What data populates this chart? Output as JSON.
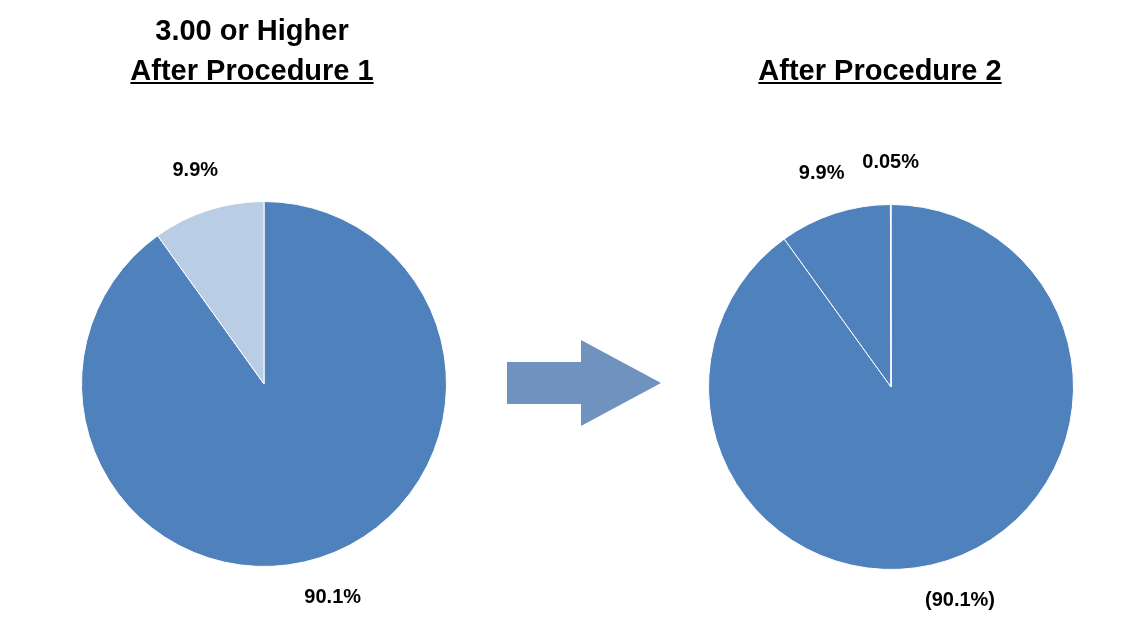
{
  "chart_data": [
    {
      "type": "pie",
      "title": "3.00 or Higher",
      "subtitle": "After Procedure 1",
      "categories": [
        null,
        null
      ],
      "values": [
        90.1,
        9.9
      ],
      "colors": [
        "#4f81bd",
        "#b9cde5"
      ],
      "value_labels": [
        "90.1%",
        "9.9%"
      ]
    },
    {
      "type": "pie",
      "title": "After Procedure 2",
      "categories": [
        null,
        null,
        null
      ],
      "values": [
        90.1,
        9.9,
        0.05
      ],
      "colors": [
        "#4f81bd",
        "#4f81bd",
        "#c0504d"
      ],
      "value_labels": [
        "(90.1%)",
        "9.9%",
        "0.05%"
      ]
    }
  ]
}
